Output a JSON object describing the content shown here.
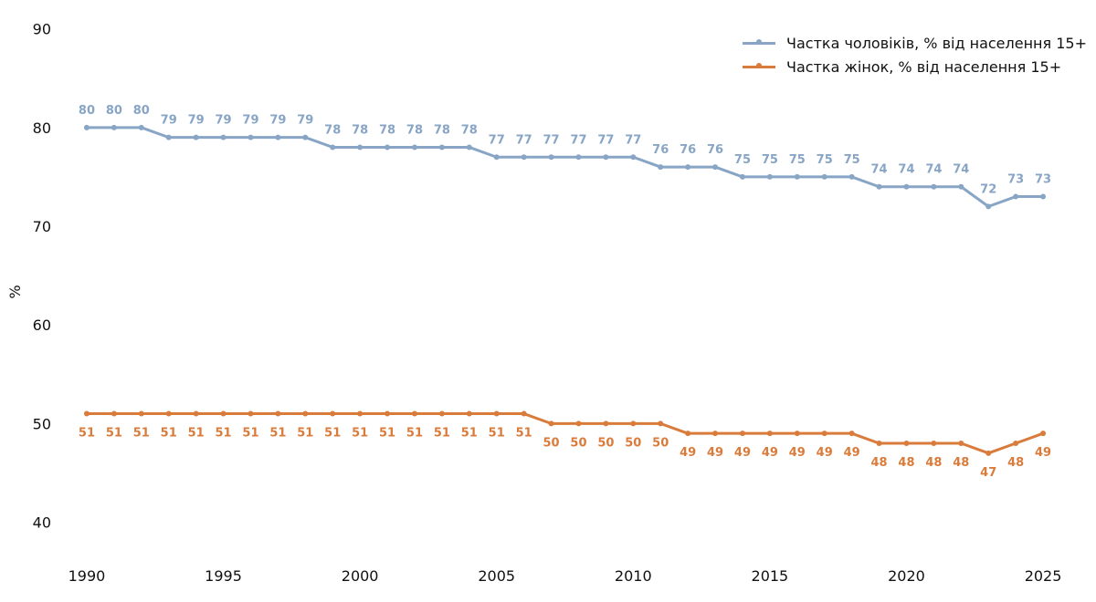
{
  "chart_data": {
    "type": "line",
    "ylabel": "%",
    "xlabel": "",
    "ylim": [
      37,
      92
    ],
    "xlim": [
      1989.5,
      2025.6
    ],
    "x_ticks": [
      1990,
      1995,
      2000,
      2005,
      2010,
      2015,
      2020,
      2025
    ],
    "y_ticks": [
      40,
      50,
      60,
      70,
      80,
      90
    ],
    "grid": false,
    "legend_position": "top-right",
    "x": [
      1990,
      1991,
      1992,
      1993,
      1994,
      1995,
      1996,
      1997,
      1998,
      1999,
      2000,
      2001,
      2002,
      2003,
      2004,
      2005,
      2006,
      2007,
      2008,
      2009,
      2010,
      2011,
      2012,
      2013,
      2014,
      2015,
      2016,
      2017,
      2018,
      2019,
      2020,
      2021,
      2022,
      2023,
      2024,
      2025
    ],
    "series": [
      {
        "name": "Частка чоловіків, % від населення 15+",
        "color": "#88a5c6",
        "label_position": "above",
        "values": [
          80,
          80,
          80,
          79,
          79,
          79,
          79,
          79,
          79,
          78,
          78,
          78,
          78,
          78,
          78,
          77,
          77,
          77,
          77,
          77,
          77,
          76,
          76,
          76,
          75,
          75,
          75,
          75,
          75,
          74,
          74,
          74,
          74,
          72,
          73,
          73
        ]
      },
      {
        "name": "Частка жінок, % від населення 15+",
        "color": "#d97b3a",
        "label_position": "below",
        "values": [
          51,
          51,
          51,
          51,
          51,
          51,
          51,
          51,
          51,
          51,
          51,
          51,
          51,
          51,
          51,
          51,
          51,
          50,
          50,
          50,
          50,
          50,
          49,
          49,
          49,
          49,
          49,
          49,
          49,
          48,
          48,
          48,
          48,
          47,
          48,
          49
        ]
      }
    ]
  }
}
